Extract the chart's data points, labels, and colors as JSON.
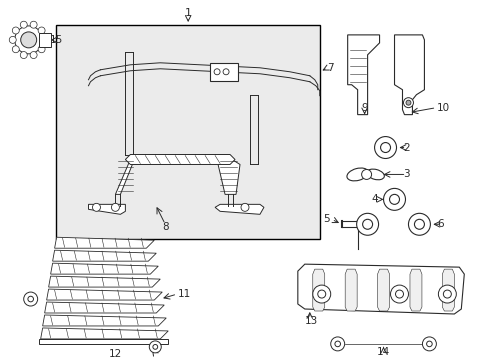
{
  "bg_color": "#ffffff",
  "line_color": "#2a2a2a",
  "fill_color": "#ffffff",
  "box_bg": "#eeeeee",
  "figsize": [
    4.89,
    3.6
  ],
  "dpi": 100
}
